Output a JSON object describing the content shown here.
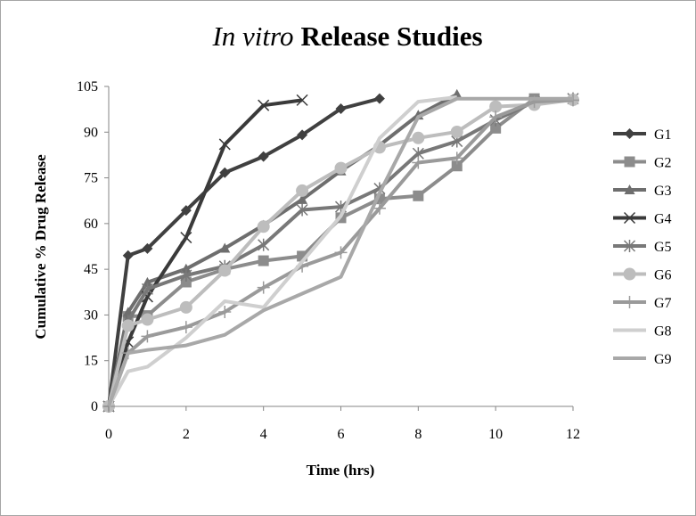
{
  "chart_data": {
    "type": "line",
    "title_italic": "In vitro",
    "title_rest": "Release Studies",
    "xlabel": "Time (hrs)",
    "ylabel": "Cumulative % Drug Release",
    "xlim": [
      0,
      12
    ],
    "ylim": [
      0,
      105
    ],
    "xticks": [
      0,
      2,
      4,
      6,
      8,
      10,
      12
    ],
    "yticks": [
      0,
      15,
      30,
      45,
      60,
      75,
      90,
      105
    ],
    "grid": false,
    "legend_position": "right",
    "series": [
      {
        "name": "G1",
        "color": "#404040",
        "marker": "diamond",
        "x": [
          0,
          0.5,
          1,
          2,
          3,
          4,
          5,
          6,
          7
        ],
        "y": [
          0,
          49.5,
          51.8,
          64.3,
          76.7,
          82.0,
          89.1,
          97.7,
          101.0
        ]
      },
      {
        "name": "G2",
        "color": "#8c8c8c",
        "marker": "square",
        "x": [
          0,
          0.5,
          1,
          2,
          3,
          4,
          5,
          6,
          7,
          8,
          9,
          10,
          11
        ],
        "y": [
          0,
          29.5,
          29.8,
          40.8,
          45.0,
          47.8,
          49.3,
          61.9,
          68.1,
          69.1,
          78.9,
          91.3,
          101.0
        ]
      },
      {
        "name": "G3",
        "color": "#6e6e6e",
        "marker": "triangle",
        "x": [
          0,
          0.5,
          1,
          2,
          3,
          4,
          5,
          6,
          7,
          8,
          9
        ],
        "y": [
          0,
          30.9,
          40.7,
          45.1,
          51.9,
          59.5,
          67.9,
          77.3,
          85.7,
          95.6,
          102.4
        ]
      },
      {
        "name": "G4",
        "color": "#3a3a3a",
        "marker": "x",
        "x": [
          0,
          0.5,
          1,
          2,
          3,
          4,
          5
        ],
        "y": [
          0,
          21.1,
          36.0,
          55.4,
          86.0,
          98.8,
          100.5
        ]
      },
      {
        "name": "G5",
        "color": "#787878",
        "marker": "asterisk",
        "x": [
          0,
          0.5,
          1,
          2,
          3,
          4,
          5,
          6,
          7,
          8,
          9,
          10,
          11,
          12
        ],
        "y": [
          0,
          28.0,
          38.5,
          43.0,
          46.0,
          53.0,
          64.5,
          65.5,
          71.5,
          83.0,
          87.0,
          94.0,
          100.0,
          101.0
        ]
      },
      {
        "name": "G6",
        "color": "#bdbdbd",
        "marker": "circle",
        "x": [
          0,
          0.5,
          1,
          2,
          3,
          4,
          5,
          6,
          7,
          8,
          9,
          10,
          11,
          12
        ],
        "y": [
          0,
          26.5,
          28.5,
          32.5,
          44.6,
          59.0,
          70.8,
          78.2,
          85.0,
          88.1,
          90.1,
          98.4,
          99.0,
          100.6
        ]
      },
      {
        "name": "G7",
        "color": "#9a9a9a",
        "marker": "plus",
        "x": [
          0,
          0.5,
          1,
          2,
          3,
          4,
          5,
          6,
          7,
          8,
          9,
          10,
          11,
          12
        ],
        "y": [
          0,
          17.5,
          23.0,
          26.0,
          31.0,
          39.0,
          46.0,
          50.5,
          65.0,
          80.0,
          81.5,
          95.0,
          100.0,
          100.5
        ]
      },
      {
        "name": "G8",
        "color": "#cfcfcf",
        "marker": "none",
        "x": [
          0,
          0.5,
          1,
          2,
          3,
          4,
          5,
          6,
          7,
          8,
          9
        ],
        "y": [
          0,
          11.5,
          13.0,
          22.5,
          34.5,
          32.5,
          47.5,
          62.5,
          88.0,
          100.0,
          101.5
        ]
      },
      {
        "name": "G9",
        "color": "#a8a8a8",
        "marker": "none",
        "x": [
          0,
          0.5,
          1,
          2,
          3,
          4,
          5,
          6,
          7,
          8,
          9,
          10,
          11,
          12
        ],
        "y": [
          0,
          17.5,
          18.5,
          20.0,
          23.5,
          31.5,
          37.0,
          42.5,
          70.0,
          95.0,
          101.0,
          101.0,
          101.0,
          101.0
        ]
      }
    ]
  }
}
